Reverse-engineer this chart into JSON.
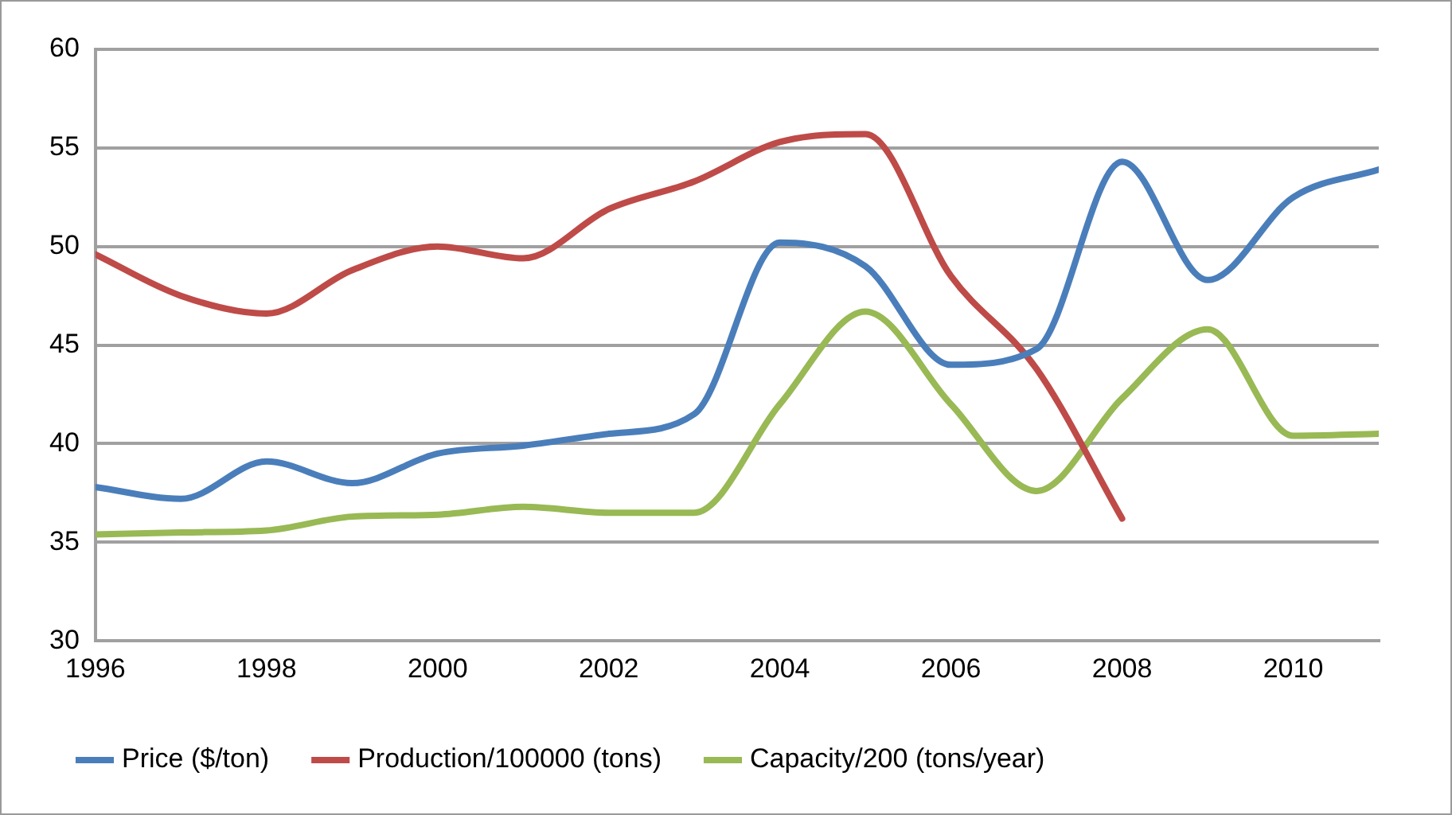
{
  "chart_data": {
    "type": "line",
    "x": [
      1996,
      1997,
      1998,
      1999,
      2000,
      2001,
      2002,
      2003,
      2004,
      2005,
      2006,
      2007,
      2008,
      2009,
      2010,
      2011
    ],
    "series": [
      {
        "name": "Price ($/ton)",
        "color": "#4a7ebb",
        "values": [
          37.8,
          37.2,
          39.1,
          38.0,
          39.5,
          39.9,
          40.5,
          41.5,
          50.2,
          49.0,
          44.0,
          44.8,
          54.3,
          48.3,
          52.5,
          53.9
        ]
      },
      {
        "name": "Production/100000 (tons)",
        "color": "#be4b48",
        "values": [
          49.6,
          47.5,
          46.6,
          48.8,
          50.0,
          49.4,
          51.9,
          53.3,
          55.3,
          55.7,
          48.5,
          43.8,
          36.2,
          null,
          null,
          null
        ]
      },
      {
        "name": "Capacity/200 (tons/year)",
        "color": "#98b954",
        "values": [
          35.4,
          35.5,
          35.6,
          36.3,
          36.4,
          36.8,
          36.5,
          36.5,
          42.0,
          46.7,
          42.0,
          37.6,
          42.3,
          45.8,
          40.4,
          40.5
        ]
      }
    ],
    "xlim": [
      1996,
      2011
    ],
    "xticks": [
      1996,
      1998,
      2000,
      2002,
      2004,
      2006,
      2008,
      2010
    ],
    "ylim": [
      30,
      60
    ],
    "yticks": [
      30,
      35,
      40,
      45,
      50,
      55,
      60
    ],
    "grid": "y",
    "legend": "bottom",
    "marker": "none",
    "line_style": "solid"
  }
}
